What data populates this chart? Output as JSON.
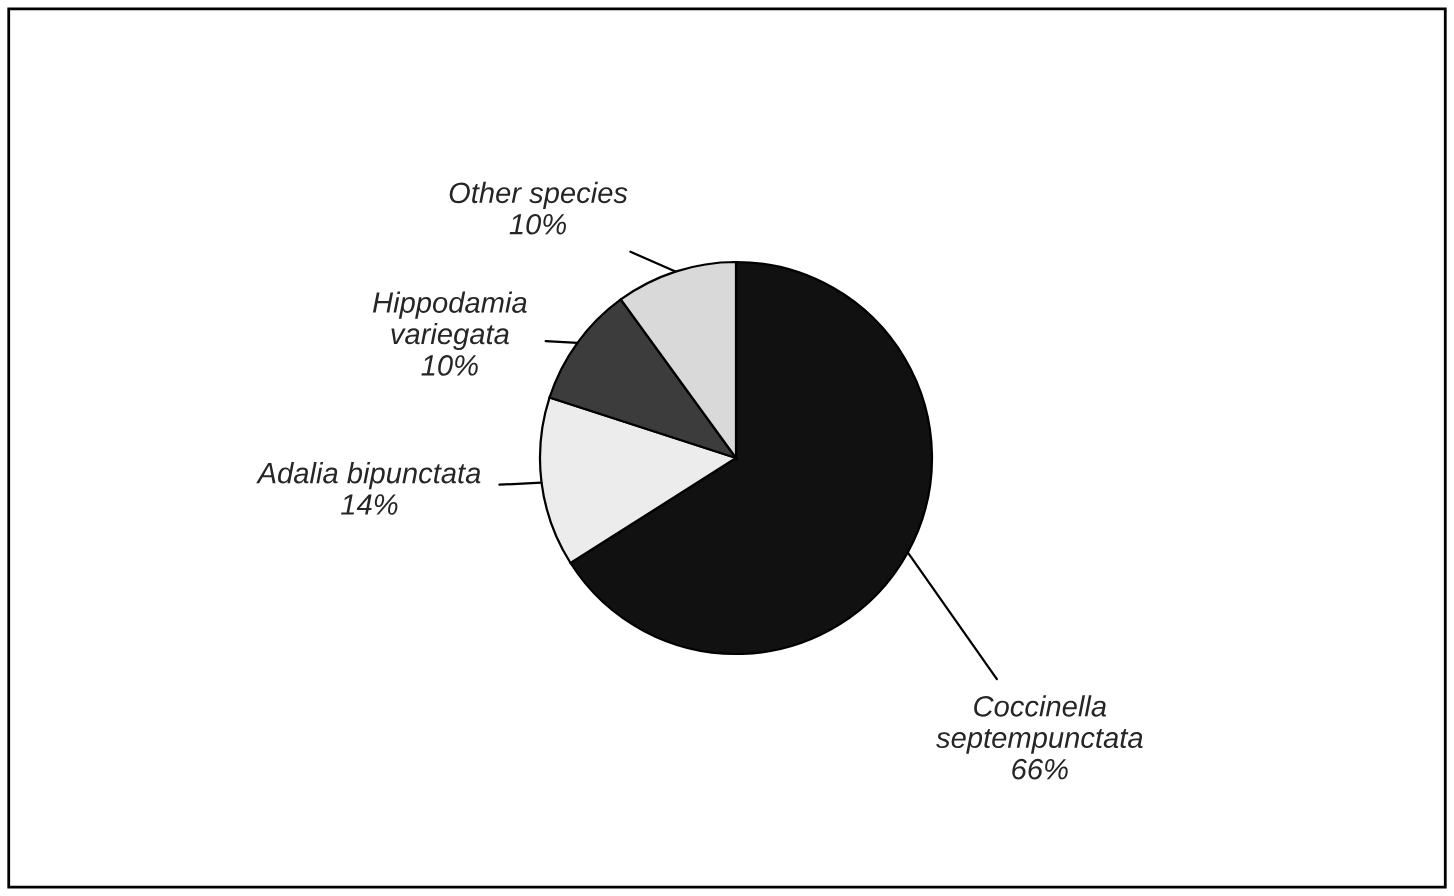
{
  "chart_data": {
    "type": "pie",
    "categories": [
      "Coccinella\nseptempunctata",
      "Adalia bipunctata",
      "Hippodamia\nvariegata",
      "Other species"
    ],
    "values": [
      66,
      14,
      10,
      10
    ],
    "colors": [
      "#111111",
      "#ececec",
      "#3c3c3c",
      "#d9d9d9"
    ],
    "value_labels": [
      "66%",
      "14%",
      "10%",
      "10%"
    ]
  }
}
